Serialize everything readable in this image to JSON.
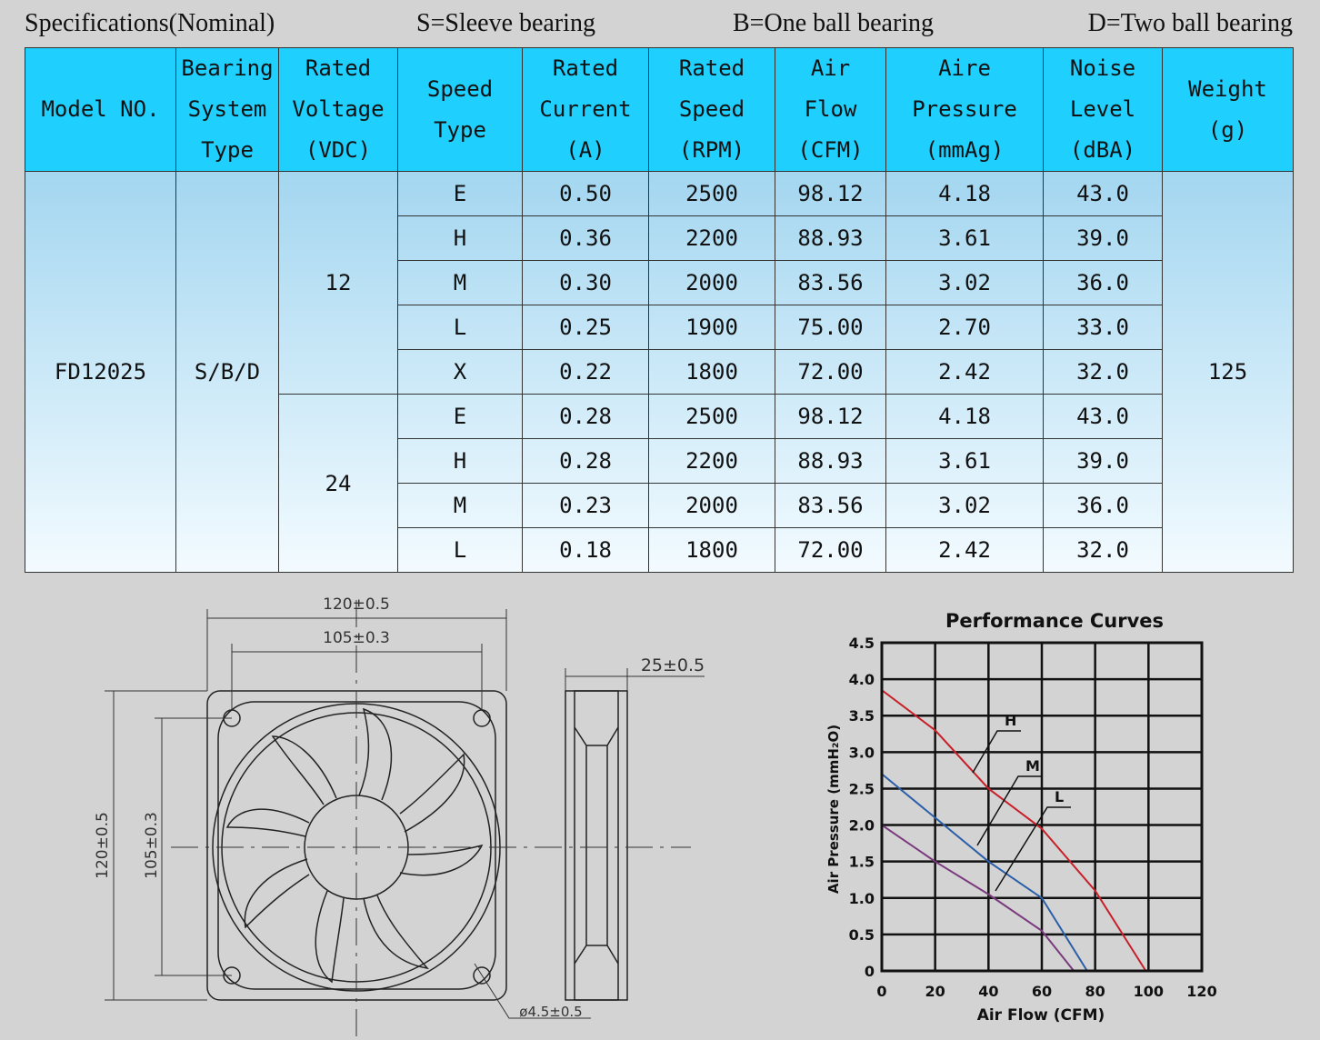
{
  "header": {
    "title": "Specifications(Nominal)",
    "sleeve": "S=Sleeve bearing",
    "one_ball": "B=One ball bearing",
    "two_ball": "D=Two ball bearing"
  },
  "table": {
    "headers": [
      [
        "Model NO."
      ],
      [
        "Bearing",
        "System",
        "Type"
      ],
      [
        "Rated",
        "Voltage",
        "(VDC)"
      ],
      [
        "Speed",
        "Type"
      ],
      [
        "Rated",
        "Current",
        "(A)"
      ],
      [
        "Rated",
        "Speed",
        "(RPM)"
      ],
      [
        "Air",
        "Flow",
        "(CFM)"
      ],
      [
        "Aire",
        "Pressure",
        "(mmAg)"
      ],
      [
        "Noise",
        "Level",
        "(dBA)"
      ],
      [
        "Weight",
        "(g)"
      ]
    ],
    "model": "FD12025",
    "bearing": "S/B/D",
    "weight": "125",
    "groups": [
      {
        "voltage": "12",
        "rows": [
          [
            "E",
            "0.50",
            "2500",
            "98.12",
            "4.18",
            "43.0"
          ],
          [
            "H",
            "0.36",
            "2200",
            "88.93",
            "3.61",
            "39.0"
          ],
          [
            "M",
            "0.30",
            "2000",
            "83.56",
            "3.02",
            "36.0"
          ],
          [
            "L",
            "0.25",
            "1900",
            "75.00",
            "2.70",
            "33.0"
          ],
          [
            "X",
            "0.22",
            "1800",
            "72.00",
            "2.42",
            "32.0"
          ]
        ]
      },
      {
        "voltage": "24",
        "rows": [
          [
            "E",
            "0.28",
            "2500",
            "98.12",
            "4.18",
            "43.0"
          ],
          [
            "H",
            "0.28",
            "2200",
            "88.93",
            "3.61",
            "39.0"
          ],
          [
            "M",
            "0.23",
            "2000",
            "83.56",
            "3.02",
            "36.0"
          ],
          [
            "L",
            "0.18",
            "1800",
            "72.00",
            "2.42",
            "32.0"
          ]
        ]
      }
    ]
  },
  "drawing": {
    "outer_width": "120±0.5",
    "hole_width": "105±0.3",
    "depth": "25±0.5",
    "outer_height": "120±0.5",
    "hole_height": "105±0.3",
    "hole_diameter": "ø4.5±0.5"
  },
  "chart_data": {
    "type": "line",
    "title": "Performance Curves",
    "x_label": "Air Flow (CFM)",
    "y_label": "Air Pressure (mmH₂O)",
    "xlim": [
      0,
      120
    ],
    "xticks": [
      0,
      20,
      40,
      60,
      80,
      100,
      120
    ],
    "ylim": [
      0,
      4.5
    ],
    "yticks": [
      0,
      0.5,
      {
        "value": 1,
        "label": "1.0"
      },
      1.5,
      {
        "value": 2,
        "label": "2.0"
      },
      2.5,
      {
        "value": 3,
        "label": "3.0"
      },
      3.5,
      {
        "value": 4,
        "label": "4.0"
      },
      4.5
    ],
    "grid": true,
    "series": [
      {
        "name": "H",
        "color": "#c8202a",
        "x": [
          0,
          20,
          40,
          60,
          80,
          99
        ],
        "values": [
          3.85,
          3.3,
          2.5,
          1.95,
          1.1,
          0
        ]
      },
      {
        "name": "M",
        "color": "#2a5fa8",
        "x": [
          0,
          20,
          40,
          60,
          77
        ],
        "values": [
          2.7,
          2.1,
          1.5,
          1.0,
          0
        ]
      },
      {
        "name": "L",
        "color": "#7a3a7e",
        "x": [
          0,
          20,
          40,
          60,
          72
        ],
        "values": [
          2.0,
          1.5,
          1.05,
          0.55,
          0
        ]
      }
    ]
  }
}
